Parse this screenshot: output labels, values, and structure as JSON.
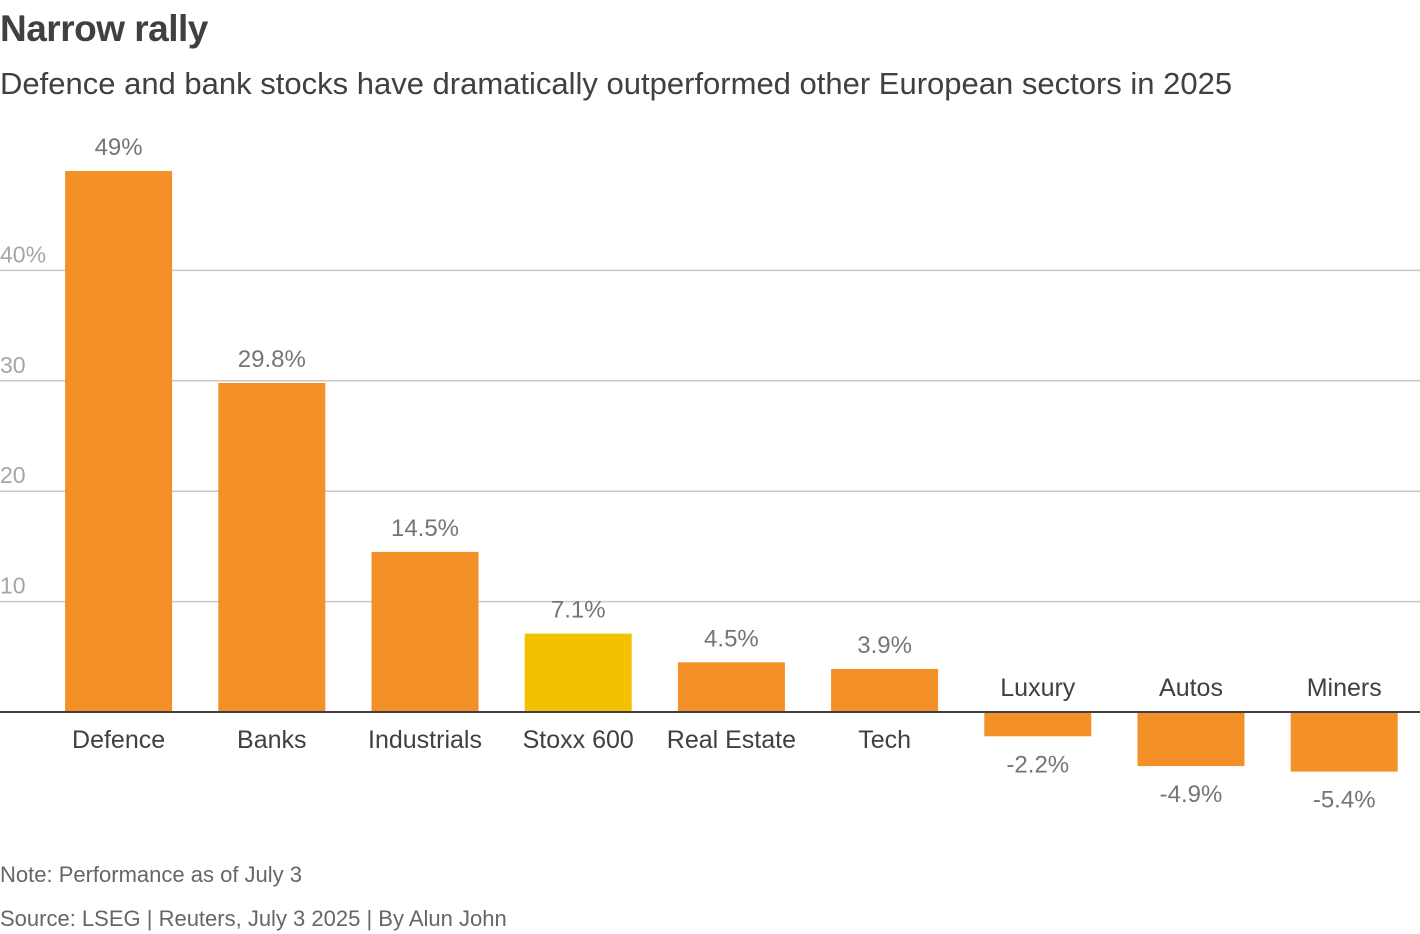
{
  "chart_data": {
    "type": "bar",
    "title": "Narrow rally",
    "subtitle": "Defence and bank stocks have dramatically outperformed other European sectors in 2025",
    "categories": [
      "Defence",
      "Banks",
      "Industrials",
      "Stoxx 600",
      "Real Estate",
      "Tech",
      "Luxury",
      "Autos",
      "Miners"
    ],
    "values": [
      49,
      29.8,
      14.5,
      7.1,
      4.5,
      3.9,
      -2.2,
      -4.9,
      -5.4
    ],
    "value_labels": [
      "49%",
      "29.8%",
      "14.5%",
      "7.1%",
      "4.5%",
      "3.9%",
      "-2.2%",
      "-4.9%",
      "-5.4%"
    ],
    "highlight_category": "Stoxx 600",
    "yticks": [
      10,
      20,
      30,
      40
    ],
    "ytick_labels": [
      "10",
      "20",
      "30",
      "40%"
    ],
    "ylim": [
      -5.4,
      49
    ],
    "xlabel": "",
    "ylabel": "",
    "grid": true,
    "colors": {
      "bar": "#f39028",
      "highlight": "#f2c200",
      "grid": "#c8c8c8",
      "axis": "#404040",
      "tick_label": "#a6a6a6",
      "value_label": "#757575",
      "category_label": "#404040"
    }
  },
  "footer": {
    "note": "Note: Performance as of July 3",
    "source": "Source: LSEG | Reuters, July 3 2025 | By Alun John"
  }
}
